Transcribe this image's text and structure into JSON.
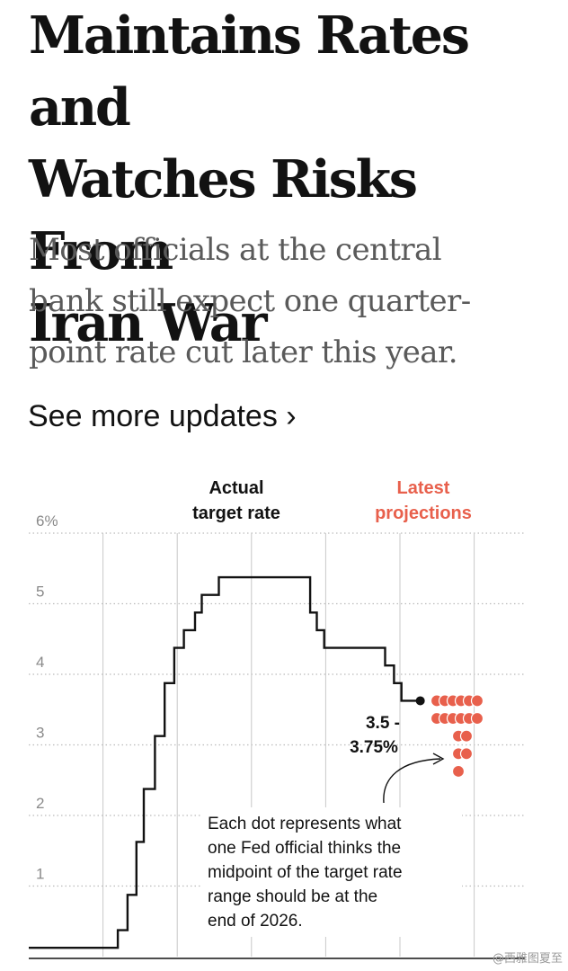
{
  "article": {
    "headline_lines": [
      "Maintains Rates and",
      "Watches Risks From",
      "Iran War"
    ],
    "dek_lines": [
      "Most officials at the central",
      "bank still expect one quarter-",
      "point rate cut later this year."
    ],
    "more_link": "See more updates ›"
  },
  "watermark": "@西雅图夏至",
  "colors": {
    "text": "#121212",
    "projection": "#e8604c",
    "grid": "#bbbbbb",
    "dek": "#5a5a5a"
  },
  "chart_data": {
    "type": "line",
    "title": "",
    "headers": {
      "actual": [
        "Actual",
        "target rate"
      ],
      "projections": [
        "Latest",
        "projections"
      ]
    },
    "ylim": [
      0,
      6
    ],
    "y_ticks": [
      {
        "value": 1,
        "label": "1"
      },
      {
        "value": 2,
        "label": "2"
      },
      {
        "value": 3,
        "label": "3"
      },
      {
        "value": 4,
        "label": "4"
      },
      {
        "value": 5,
        "label": "5"
      },
      {
        "value": 6,
        "label": "6%"
      }
    ],
    "xlim": [
      2021,
      2027.2
    ],
    "x_gridlines": [
      2022,
      2023,
      2024,
      2025,
      2026,
      2027
    ],
    "series": [
      {
        "name": "Actual target rate (midpoint)",
        "points": [
          [
            2021.0,
            0.125
          ],
          [
            2022.2,
            0.375
          ],
          [
            2022.33,
            0.875
          ],
          [
            2022.45,
            1.625
          ],
          [
            2022.55,
            2.375
          ],
          [
            2022.7,
            3.125
          ],
          [
            2022.83,
            3.875
          ],
          [
            2022.96,
            4.375
          ],
          [
            2023.09,
            4.625
          ],
          [
            2023.24,
            4.875
          ],
          [
            2023.33,
            5.125
          ],
          [
            2023.56,
            5.375
          ],
          [
            2024.7,
            5.375
          ],
          [
            2024.79,
            4.875
          ],
          [
            2024.88,
            4.625
          ],
          [
            2024.98,
            4.375
          ],
          [
            2025.71,
            4.375
          ],
          [
            2025.8,
            4.125
          ],
          [
            2025.92,
            3.875
          ],
          [
            2026.02,
            3.625
          ],
          [
            2026.25,
            3.625
          ]
        ]
      }
    ],
    "projections_2026": [
      {
        "rate": 3.625,
        "officials": 6
      },
      {
        "rate": 3.375,
        "officials": 6
      },
      {
        "rate": 3.125,
        "officials": 2
      },
      {
        "rate": 2.875,
        "officials": 2
      },
      {
        "rate": 2.625,
        "officials": 1
      }
    ],
    "current_label": [
      "3.5 -",
      "3.75%"
    ],
    "annotation": [
      "Each dot represents what",
      "one Fed official thinks the",
      "midpoint of the target rate",
      "range should be at the",
      "end of 2026."
    ]
  }
}
